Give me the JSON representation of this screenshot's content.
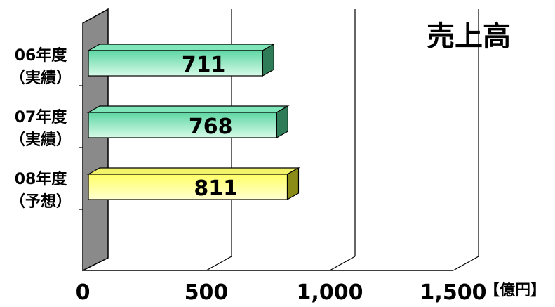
{
  "chart_data": {
    "type": "bar",
    "orientation": "horizontal",
    "style": "3d",
    "title": "売上高",
    "unit_label": "【億円】",
    "categories": [
      [
        "06年度",
        "（実績）"
      ],
      [
        "07年度",
        "（実績）"
      ],
      [
        "08年度",
        "（予想）"
      ]
    ],
    "values": [
      711,
      768,
      811
    ],
    "value_labels": [
      "711",
      "768",
      "811"
    ],
    "xlim": [
      0,
      1500
    ],
    "xticks": [
      0,
      500,
      1000,
      1500
    ],
    "xtick_labels": [
      "0",
      "500",
      "1,000",
      "1,500"
    ],
    "grid": true,
    "legend": "none",
    "bar_colors": [
      "#5fd6a4",
      "#5fd6a4",
      "#ffff66"
    ],
    "bar_gradient_light": [
      "#d7fbe8",
      "#d7fbe8",
      "#ffffd0"
    ],
    "bar_side_colors": [
      "#2e7d58",
      "#2e7d58",
      "#8b8b17"
    ],
    "bar_top_colors": [
      "#7ee6b8",
      "#7ee6b8",
      "#f3f36a"
    ],
    "wall_color": "#8a8a8a"
  }
}
